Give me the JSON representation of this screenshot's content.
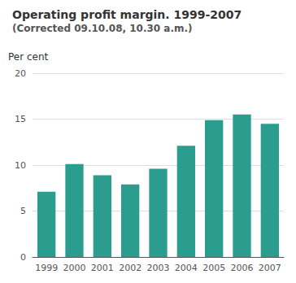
{
  "chart_data": {
    "type": "bar",
    "title": "Operating profit margin. 1999-2007",
    "subtitle": "(Corrected 09.10.08, 10.30 a.m.)",
    "ylabel": "Per cent",
    "categories": [
      "1999",
      "2000",
      "2001",
      "2002",
      "2003",
      "2004",
      "2005",
      "2006",
      "2007"
    ],
    "values": [
      7.1,
      10.1,
      8.9,
      7.9,
      9.6,
      12.1,
      14.9,
      15.5,
      14.5
    ],
    "color": "#2a9d8f",
    "ylim": [
      0,
      20
    ],
    "yticks": [
      0,
      5,
      10,
      15,
      20
    ],
    "grid": true
  }
}
